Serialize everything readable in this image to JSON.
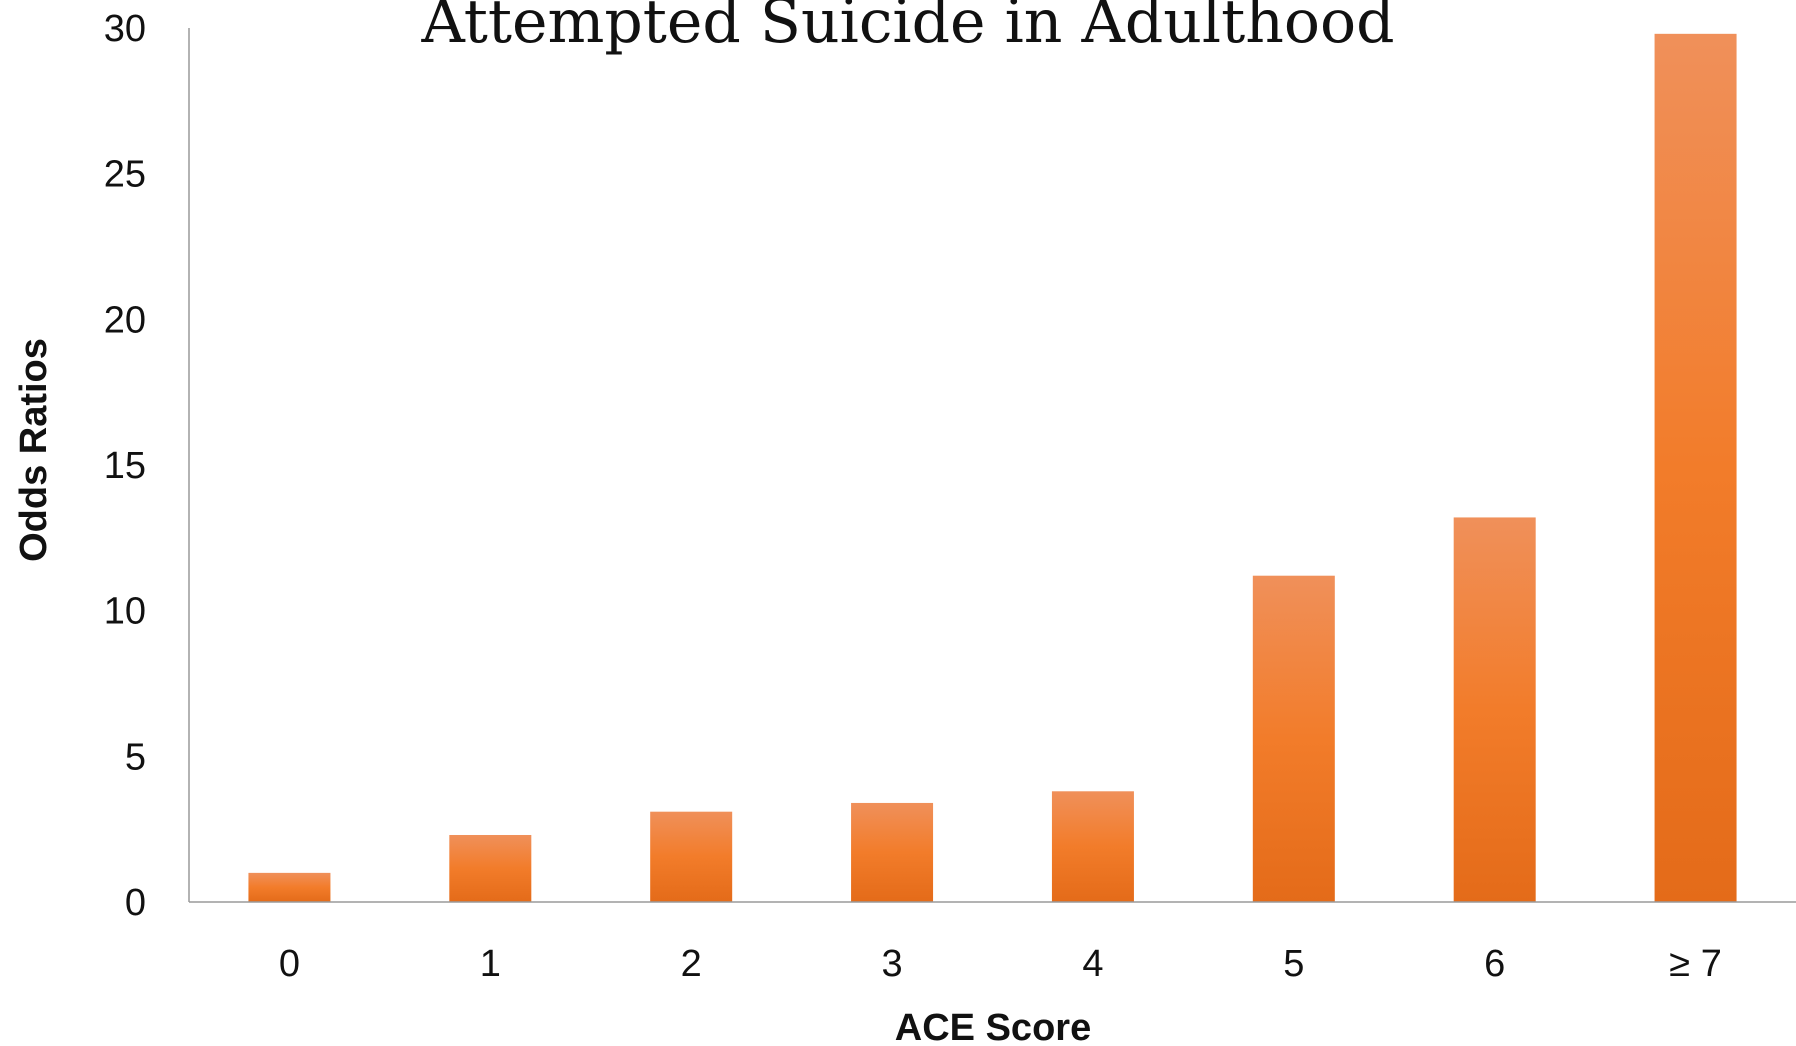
{
  "chart_data": {
    "type": "bar",
    "title": "Attempted Suicide in Adulthood",
    "xlabel": "ACE Score",
    "ylabel": "Odds Ratios",
    "categories": [
      "0",
      "1",
      "2",
      "3",
      "4",
      "5",
      "6",
      "≥ 7"
    ],
    "values": [
      1.0,
      2.3,
      3.1,
      3.4,
      3.8,
      11.2,
      13.2,
      29.8
    ],
    "ylim": [
      0,
      30
    ],
    "yticks": [
      "0",
      "5",
      "10",
      "15",
      "20",
      "25",
      "30"
    ],
    "grid": false,
    "legend": "none",
    "colors": {
      "bar_light": "#f0905a",
      "bar_mid": "#f27c2a",
      "bar_dark": "#e46b19"
    }
  }
}
